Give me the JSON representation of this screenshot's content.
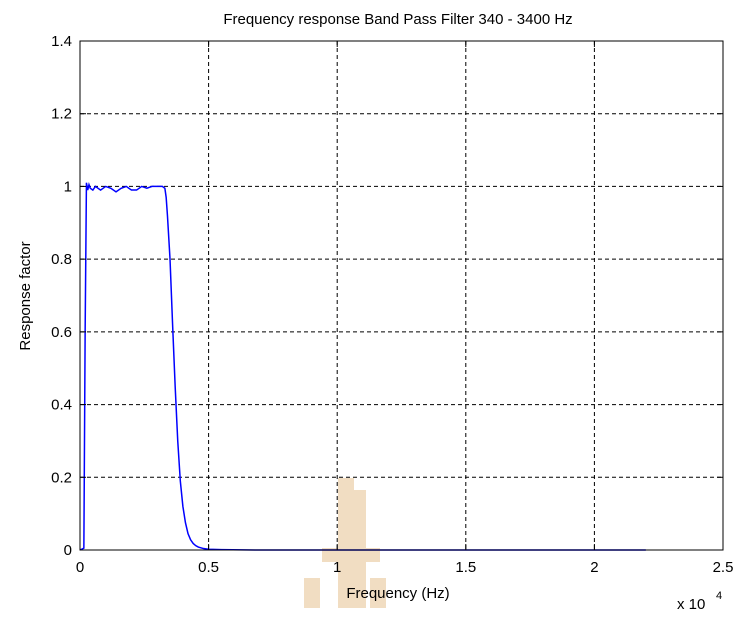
{
  "chart_data": {
    "type": "line",
    "title": "Frequency response Band Pass Filter 340 - 3400 Hz",
    "xlabel": "Frequency (Hz)",
    "ylabel": "Response factor",
    "x_exponent_label": "x 10",
    "x_exponent_power": "4",
    "xlim": [
      0,
      2.5
    ],
    "ylim": [
      0,
      1.4
    ],
    "grid": true,
    "x_ticks": [
      0,
      0.5,
      1,
      1.5,
      2,
      2.5
    ],
    "x_tick_labels": [
      "0",
      "0.5",
      "1",
      "1.5",
      "2",
      "2.5"
    ],
    "y_ticks": [
      0,
      0.2,
      0.4,
      0.6,
      0.8,
      1,
      1.2,
      1.4
    ],
    "y_tick_labels": [
      "0",
      "0.2",
      "0.4",
      "0.6",
      "0.8",
      "1",
      "1.2",
      "1.4"
    ],
    "series": [
      {
        "color": "#0000ff",
        "x": [
          0,
          0.015,
          0.02,
          0.025,
          0.03,
          0.035,
          0.04,
          0.05,
          0.06,
          0.08,
          0.1,
          0.12,
          0.14,
          0.16,
          0.18,
          0.2,
          0.22,
          0.24,
          0.26,
          0.28,
          0.3,
          0.32,
          0.33,
          0.335,
          0.34,
          0.35,
          0.36,
          0.37,
          0.38,
          0.39,
          0.4,
          0.41,
          0.42,
          0.43,
          0.44,
          0.45,
          0.46,
          0.48,
          0.5,
          0.55,
          0.7,
          1.0,
          1.5,
          2.0,
          2.2
        ],
        "y": [
          0,
          0.005,
          0.6,
          1.01,
          0.99,
          1.005,
          0.995,
          0.99,
          1.0,
          0.99,
          1.0,
          0.995,
          0.985,
          0.995,
          1.0,
          0.99,
          0.99,
          1.0,
          0.995,
          1.0,
          1.0,
          1.0,
          0.995,
          0.97,
          0.92,
          0.8,
          0.62,
          0.45,
          0.3,
          0.19,
          0.12,
          0.075,
          0.045,
          0.028,
          0.018,
          0.012,
          0.008,
          0.004,
          0.002,
          0.001,
          0.0,
          0.0,
          0.0,
          0.0,
          0.0
        ]
      }
    ]
  },
  "watermark": {
    "color": "#e8c79a"
  }
}
